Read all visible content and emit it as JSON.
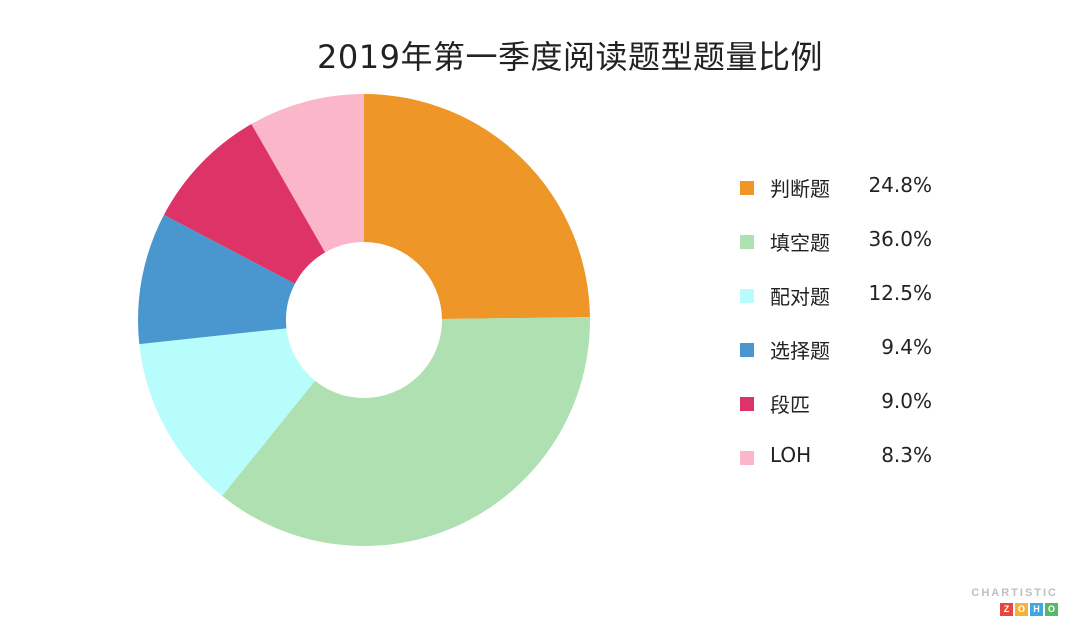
{
  "chart_data": {
    "type": "pie",
    "variant": "donut",
    "title": "2019年第一季度阅读题型题量比例",
    "categories": [
      "判断题",
      "填空题",
      "配对题",
      "选择题",
      "段匹",
      "LOH"
    ],
    "values": [
      24.8,
      36.0,
      12.5,
      9.4,
      9.0,
      8.3
    ],
    "value_labels": [
      "24.8%",
      "36.0%",
      "12.5%",
      "9.4%",
      "9.0%",
      "8.3%"
    ],
    "colors": [
      "#EE9627",
      "#AEE0B1",
      "#B7FDFB",
      "#4A97D0",
      "#DE3366",
      "#FBB6C9"
    ],
    "legend_placement": "right",
    "start_angle": "12 o'clock, clockwise"
  },
  "branding": {
    "top": "CHARTISTIC",
    "bottom": [
      "Z",
      "O",
      "H",
      "O"
    ],
    "bottom_colors": [
      "#E8473D",
      "#F4B23A",
      "#3FA8DC",
      "#58B769"
    ]
  }
}
